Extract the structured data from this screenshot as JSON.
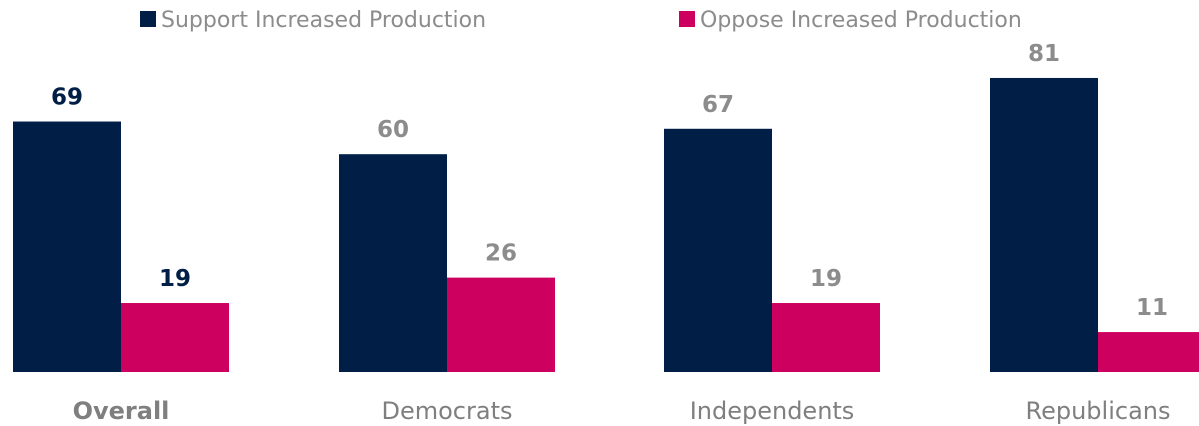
{
  "colors": {
    "support": "#001e46",
    "oppose": "#cd005f",
    "label_highlight": "#001e46",
    "label_muted": "#8c8c8c"
  },
  "chart_data": {
    "type": "bar",
    "categories": [
      "Overall",
      "Democrats",
      "Independents",
      "Republicans"
    ],
    "highlight_category": "Overall",
    "series": [
      {
        "name": "Support Increased Production",
        "values": [
          69,
          60,
          67,
          81
        ]
      },
      {
        "name": "Oppose Increased Production",
        "values": [
          19,
          26,
          19,
          11
        ]
      }
    ],
    "legend_position": "top",
    "grid": false,
    "title": "",
    "xlabel": "",
    "ylabel": "",
    "ylim": [
      0,
      81
    ]
  }
}
